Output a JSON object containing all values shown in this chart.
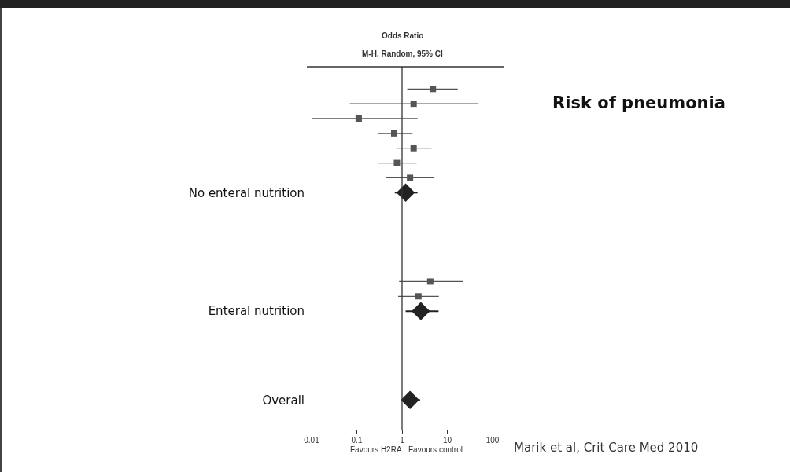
{
  "chart_data": {
    "type": "scatter",
    "orientation": "horizontal",
    "title": "Risk of pneumonia",
    "annotations": [
      "Odds Ratio",
      "M-H, Random, 95% CI",
      "Favours H2RA",
      "Favours control",
      "Marik et al, Crit Care Med 2010"
    ],
    "categories": [
      null,
      null,
      null,
      null,
      null,
      null,
      null,
      "No enteral nutrition",
      null,
      null,
      null,
      null,
      null,
      null,
      null,
      "Enteral nutrition",
      null,
      null,
      null,
      null,
      null,
      "Overall"
    ],
    "series": [
      {
        "color": "#555555",
        "marker": "square",
        "values": [
          4.8,
          1.8,
          0.11,
          0.67,
          1.8,
          0.77,
          1.5,
          null,
          null,
          null,
          null,
          null,
          null,
          4.2,
          2.3,
          null,
          null,
          null,
          null,
          null,
          null,
          null
        ],
        "errors": [
          [
            1.3,
            17
          ],
          [
            0.07,
            49
          ],
          [
            0.01,
            2.2
          ],
          [
            0.29,
            1.7
          ],
          [
            0.74,
            4.5
          ],
          [
            0.29,
            2.1
          ],
          [
            0.45,
            5.2
          ],
          null,
          null,
          null,
          null,
          null,
          null,
          [
            0.86,
            22
          ],
          [
            0.82,
            6.5
          ],
          null,
          null,
          null,
          null,
          null,
          null,
          null
        ]
      },
      {
        "color": "#222222",
        "marker": "diamond",
        "values": [
          null,
          null,
          null,
          null,
          null,
          null,
          null,
          1.2,
          null,
          null,
          null,
          null,
          null,
          null,
          null,
          2.6,
          null,
          null,
          null,
          null,
          null,
          1.5
        ],
        "errors": [
          null,
          null,
          null,
          null,
          null,
          null,
          null,
          [
            0.69,
            2.2
          ],
          null,
          null,
          null,
          null,
          null,
          null,
          null,
          [
            1.2,
            6.4
          ],
          null,
          null,
          null,
          null,
          null,
          [
            0.96,
            2.5
          ]
        ]
      }
    ],
    "log": "x",
    "xlim": [
      0.01,
      100
    ],
    "xticks": [
      0.01,
      0.1,
      1,
      10,
      100
    ],
    "grid": false,
    "ref_lines": [
      {
        "axis": "x",
        "value": 1,
        "color": "#333333"
      }
    ]
  }
}
